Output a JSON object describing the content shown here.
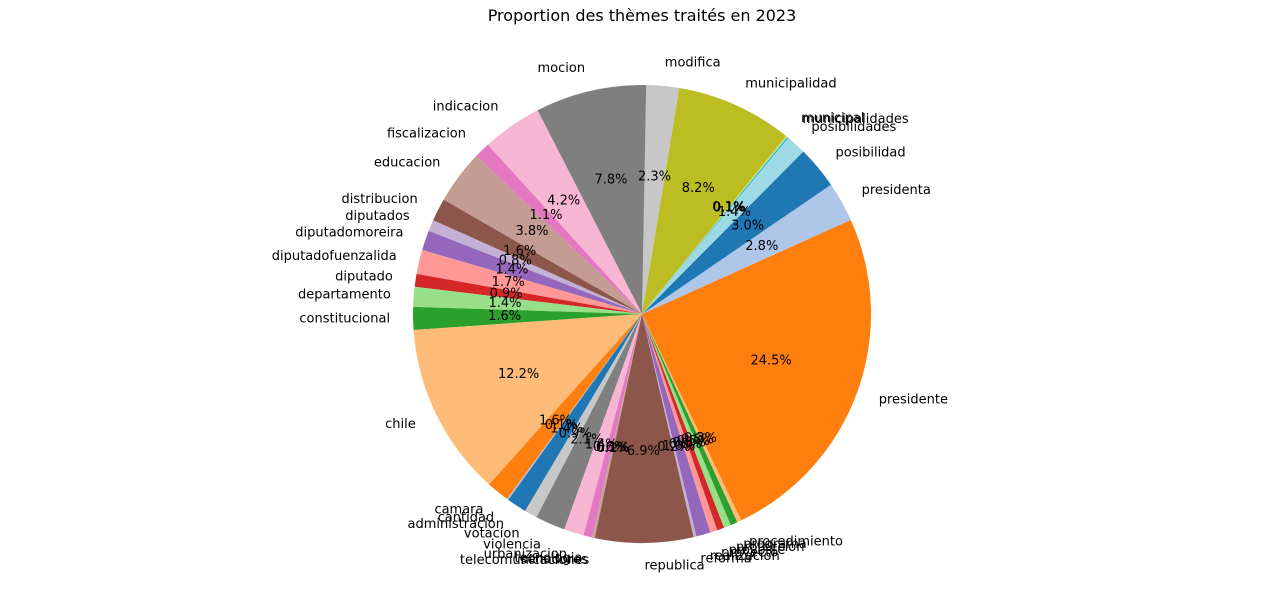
{
  "chart_data": {
    "type": "pie",
    "title": "Proportion des thèmes traités en 2023",
    "unit": "%",
    "slices": [
      {
        "label": "presidente",
        "value": 24.5,
        "color": "#ff7f0e",
        "pct_text": "24.5%"
      },
      {
        "label": "presidenta",
        "value": 2.8,
        "color": "#aec7e8",
        "pct_text": "2.8%"
      },
      {
        "label": "posibilidad",
        "value": 3.0,
        "color": "#1f77b4",
        "pct_text": "3.0%"
      },
      {
        "label": "posibilidades",
        "value": 1.4,
        "color": "#9edae5",
        "pct_text": "1.4%"
      },
      {
        "label": "municipalidades",
        "value": 0.1,
        "color": "#17becf",
        "pct_text": "0.1%"
      },
      {
        "label": "municipal",
        "value": 0.1,
        "color": "#dbdb8d",
        "pct_text": "0.1%"
      },
      {
        "label": "municipalidad",
        "value": 8.2,
        "color": "#bcbd22",
        "pct_text": "8.2%"
      },
      {
        "label": "modifica",
        "value": 2.3,
        "color": "#c7c7c7",
        "pct_text": "2.3%"
      },
      {
        "label": "mocion",
        "value": 7.8,
        "color": "#7f7f7f",
        "pct_text": "7.8%"
      },
      {
        "label": "indicacion",
        "value": 4.2,
        "color": "#f7b6d2",
        "pct_text": "4.2%"
      },
      {
        "label": "fiscalizacion",
        "value": 1.1,
        "color": "#e377c2",
        "pct_text": "1.1%"
      },
      {
        "label": "educacion",
        "value": 3.8,
        "color": "#c49c94",
        "pct_text": "3.8%"
      },
      {
        "label": "distribucion",
        "value": 1.6,
        "color": "#8c564b",
        "pct_text": "1.6%"
      },
      {
        "label": "diputados",
        "value": 0.8,
        "color": "#c5b0d5",
        "pct_text": "0.8%"
      },
      {
        "label": "diputadomoreira",
        "value": 1.4,
        "color": "#9467bd",
        "pct_text": "1.4%"
      },
      {
        "label": "diputadofuenzalida",
        "value": 1.7,
        "color": "#ff9896",
        "pct_text": "1.7%"
      },
      {
        "label": "diputado",
        "value": 0.9,
        "color": "#d62728",
        "pct_text": "0.9%"
      },
      {
        "label": "departamento",
        "value": 1.4,
        "color": "#98df8a",
        "pct_text": "1.4%"
      },
      {
        "label": "constitucional",
        "value": 1.6,
        "color": "#2ca02c",
        "pct_text": "1.6%"
      },
      {
        "label": "chile",
        "value": 12.2,
        "color": "#ffbb78",
        "pct_text": "12.2%"
      },
      {
        "label": "camara",
        "value": 1.6,
        "color": "#ff7f0e",
        "pct_text": "1.6%"
      },
      {
        "label": "cantidad",
        "value": 0.1,
        "color": "#aec7e8",
        "pct_text": "0.1%"
      },
      {
        "label": "administracion",
        "value": 1.4,
        "color": "#1f77b4",
        "pct_text": "1.4%"
      },
      {
        "label": "votacion",
        "value": 0.9,
        "color": "#c7c7c7",
        "pct_text": "0.9%"
      },
      {
        "label": "violencia",
        "value": 2.1,
        "color": "#7f7f7f",
        "pct_text": "2.1%"
      },
      {
        "label": "urbanizacion",
        "value": 1.4,
        "color": "#f7b6d2",
        "pct_text": "1.4%"
      },
      {
        "label": "tecnologia",
        "value": 0.6,
        "color": "#e377c2",
        "pct_text": "0.6%"
      },
      {
        "label": "senadores",
        "value": 0.1,
        "color": "#c49c94",
        "pct_text": "0.1%"
      },
      {
        "label": "telecomunicaciones",
        "value": 0.1,
        "color": "#c49c94",
        "pct_text": "0.1%"
      },
      {
        "label": "republica",
        "value": 6.9,
        "color": "#8c564b",
        "pct_text": "6.9%"
      },
      {
        "label": "reforma",
        "value": 0.2,
        "color": "#c5b0d5",
        "pct_text": "0.2%"
      },
      {
        "label": "realizacion",
        "value": 1.0,
        "color": "#9467bd",
        "pct_text": "1.0%"
      },
      {
        "label": "proyecto",
        "value": 0.5,
        "color": "#ff9896",
        "pct_text": "0.5%"
      },
      {
        "label": "proyoste",
        "value": 0.5,
        "color": "#d62728",
        "pct_text": "0.5%"
      },
      {
        "label": "proteccion",
        "value": 0.5,
        "color": "#98df8a",
        "pct_text": "0.5%"
      },
      {
        "label": "programa",
        "value": 0.5,
        "color": "#2ca02c",
        "pct_text": "0.5%"
      },
      {
        "label": "procedimiento",
        "value": 0.3,
        "color": "#ffbb78",
        "pct_text": "0.3%"
      }
    ]
  }
}
